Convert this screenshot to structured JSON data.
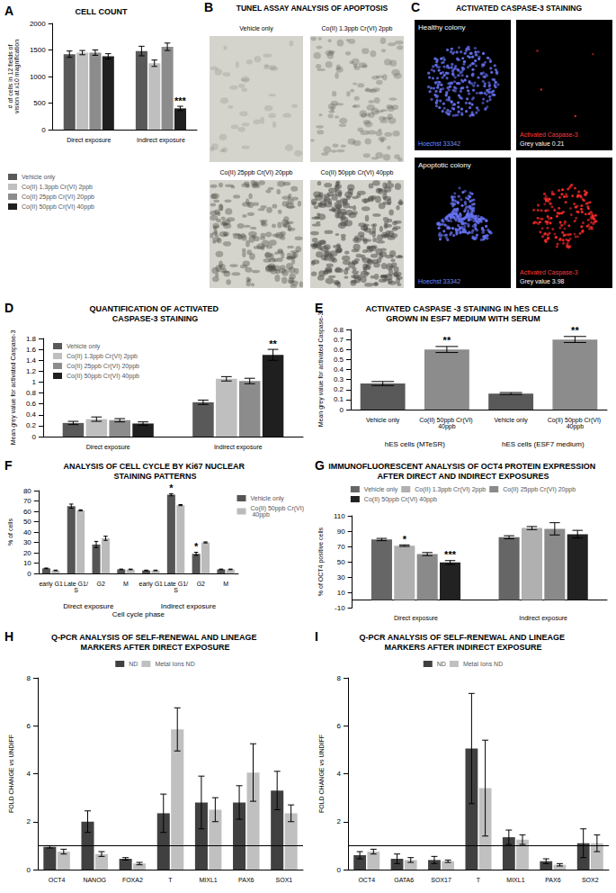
{
  "chart_data": [
    {
      "label": "A",
      "type": "bar",
      "title": "CELL COUNT",
      "categories": [
        "Direct exposure",
        "Indirect exposure"
      ],
      "y_label": "# of cells in 12 fields of\nvision at x10 magnification",
      "ylim": [
        0,
        2000
      ],
      "yticks": [
        0,
        500,
        1000,
        1500,
        2000
      ],
      "grid": false,
      "legend": "bottom-left",
      "series": [
        {
          "name": "Vehicle only",
          "color": "#595959",
          "values": [
            1420,
            1480
          ],
          "errors": [
            60,
            90
          ]
        },
        {
          "name": "Co(II) 1.3ppb Cr(VI) 2ppb",
          "color": "#bfbfbf",
          "values": [
            1450,
            1250
          ],
          "errors": [
            40,
            60
          ]
        },
        {
          "name": "Co(II) 25ppb Cr(VI) 20ppb",
          "color": "#8c8c8c",
          "values": [
            1450,
            1560
          ],
          "errors": [
            50,
            70
          ]
        },
        {
          "name": "Co(II) 50ppb Cr(VI) 40ppb",
          "color": "#1f1f1f",
          "values": [
            1380,
            400
          ],
          "errors": [
            50,
            40
          ]
        }
      ],
      "annotations": [
        {
          "series": 3,
          "category": 1,
          "text": "***"
        }
      ]
    },
    {
      "label": "D",
      "type": "bar",
      "title": "QUANTIFICATION OF ACTIVATED CASPASE-3 STAINING",
      "categories": [
        "Direct exposure",
        "Indirect exposure"
      ],
      "y_label": "Mean grey value for activated Caspase-3",
      "ylim": [
        0,
        1.8
      ],
      "yticks": [
        0,
        0.2,
        0.4,
        0.6,
        0.8,
        1,
        1.2,
        1.4,
        1.6,
        1.8
      ],
      "grid": false,
      "legend": "top-left",
      "series": [
        {
          "name": "Vehicle only",
          "color": "#595959",
          "values": [
            0.25,
            0.63
          ],
          "errors": [
            0.03,
            0.04
          ]
        },
        {
          "name": "Co(II) 1.3ppb Cr(VI) 2ppb",
          "color": "#bfbfbf",
          "values": [
            0.32,
            1.06
          ],
          "errors": [
            0.04,
            0.04
          ]
        },
        {
          "name": "Co(II) 25ppb Cr(VI) 20ppb",
          "color": "#8c8c8c",
          "values": [
            0.3,
            1.02
          ],
          "errors": [
            0.03,
            0.05
          ]
        },
        {
          "name": "Co(II) 50ppb Cr(VI) 40ppb",
          "color": "#1f1f1f",
          "values": [
            0.24,
            1.5
          ],
          "errors": [
            0.03,
            0.1
          ]
        }
      ],
      "annotations": [
        {
          "series": 3,
          "category": 1,
          "text": "**"
        }
      ]
    },
    {
      "label": "E",
      "type": "bar",
      "title": "ACTIVATED CASPASE -3 STAINING IN hES CELLS GROWN IN ESF7 MEDIUM WITH SERUM",
      "categories": [
        "Vehicle only",
        "Co(II) 50ppb Cr(VI) 40ppb",
        "Vehicle only",
        "Co(II) 50ppb Cr(VI) 40ppb"
      ],
      "groups": [
        "hES cells (MTeSR)",
        "hES cells (ESF7 medium)"
      ],
      "y_label": "Mean grey value for activated Caspase-3",
      "ylim": [
        0,
        0.8
      ],
      "yticks": [
        0,
        0.1,
        0.2,
        0.3,
        0.4,
        0.5,
        0.6,
        0.7,
        0.8
      ],
      "grid": false,
      "values": [
        0.26,
        0.6,
        0.16,
        0.7
      ],
      "errors": [
        0.02,
        0.03,
        0.01,
        0.03
      ],
      "colors": [
        "#595959",
        "#8c8c8c",
        "#595959",
        "#8c8c8c"
      ],
      "annotations": [
        {
          "series": 0,
          "category": 1,
          "text": "**"
        },
        {
          "series": 0,
          "category": 3,
          "text": "**"
        }
      ]
    },
    {
      "label": "F",
      "type": "bar",
      "title": "ANALYSIS OF CELL CYCLE BY Ki67 NUCLEAR STAINING PATTERNS",
      "categories": [
        "early G1",
        "Late G1/S",
        "G2",
        "M",
        "early G1",
        "Late G1/S",
        "G2",
        "M"
      ],
      "groups": [
        "Direct exposure",
        "Indirect exposure"
      ],
      "x_label": "Cell cycle phase",
      "y_label": "% of cells",
      "ylim": [
        0,
        80
      ],
      "yticks": [
        0,
        10,
        20,
        30,
        40,
        50,
        60,
        70,
        80
      ],
      "grid": false,
      "legend": "top-right",
      "series": [
        {
          "name": "Vehicle only",
          "color": "#555555",
          "values": [
            5,
            65,
            28,
            4,
            3,
            76,
            19,
            4
          ],
          "errors": [
            0.3,
            2,
            3,
            0.3,
            0.3,
            1,
            1.5,
            0.3
          ]
        },
        {
          "name": "Co(II) 50ppb Cr(VI) 40ppb",
          "color": "#bbbbbb",
          "values": [
            3,
            61,
            34,
            4,
            3,
            66,
            30,
            4
          ],
          "errors": [
            0.3,
            0.5,
            2,
            0.3,
            0.3,
            0.5,
            0.5,
            0.3
          ]
        }
      ],
      "annotations": [
        {
          "series": 0,
          "category": 5,
          "text": "*"
        },
        {
          "series": 0,
          "category": 6,
          "text": "*"
        }
      ]
    },
    {
      "label": "G",
      "type": "bar",
      "title": "IMMUNOFLUORESCENT ANALYSIS OF OCT4 PROTEIN EXPRESSION AFTER DIRECT AND INDIRECT EXPOSURES",
      "categories": [
        "Direct exposure",
        "Indirect exposure"
      ],
      "y_label": "% of OCT4 positive cells",
      "ylim": [
        -10,
        110
      ],
      "yticks": [
        -10,
        10,
        30,
        50,
        70,
        90,
        110
      ],
      "grid": false,
      "legend": "top",
      "series": [
        {
          "name": "Vehicle only",
          "color": "#666666",
          "values": [
            79,
            82
          ],
          "errors": [
            1.5,
            2
          ]
        },
        {
          "name": "Co(II) 1.3ppb Cr(VI) 2ppb",
          "color": "#b0b0b0",
          "values": [
            71,
            94
          ],
          "errors": [
            1,
            2
          ]
        },
        {
          "name": "Co(II) 25ppb Cr(VI) 20ppb",
          "color": "#8a8a8a",
          "values": [
            60,
            93
          ],
          "errors": [
            2,
            8
          ]
        },
        {
          "name": "Co(II) 50ppb Cr(VI) 40ppb",
          "color": "#222222",
          "values": [
            49,
            86
          ],
          "errors": [
            2.5,
            5
          ]
        }
      ],
      "annotations": [
        {
          "series": 1,
          "category": 0,
          "text": "*"
        },
        {
          "series": 3,
          "category": 0,
          "text": "***"
        }
      ]
    },
    {
      "label": "H",
      "type": "bar",
      "title": "Q-PCR ANALYSIS OF SELF-RENEWAL AND LINEAGE MARKERS AFTER DIRECT EXPOSURE",
      "categories": [
        "OCT4",
        "NANOG",
        "FOXA2",
        "T",
        "MIXL1",
        "PAX6",
        "SOX1"
      ],
      "y_label": "FOLD CHANGE vs UNDIFF",
      "ylim": [
        0,
        8
      ],
      "yticks": [
        0,
        2,
        4,
        6,
        8
      ],
      "grid": false,
      "legend": "top",
      "reference_line": 1,
      "series": [
        {
          "name": "ND",
          "color": "#404040",
          "values": [
            0.95,
            2.0,
            0.45,
            2.35,
            2.8,
            2.8,
            3.3
          ],
          "errors": [
            0.05,
            0.45,
            0.05,
            0.8,
            1.1,
            0.7,
            0.8
          ]
        },
        {
          "name": "Metal Ions ND",
          "color": "#c0c0c0",
          "values": [
            0.75,
            0.65,
            0.25,
            5.85,
            2.5,
            4.05,
            2.35
          ],
          "errors": [
            0.1,
            0.1,
            0.05,
            0.9,
            0.5,
            1.2,
            0.35
          ]
        }
      ]
    },
    {
      "label": "I",
      "type": "bar",
      "title": "Q-PCR ANALYSIS OF SELF-RENEWAL AND LINEAGE MARKERS AFTER INDIRECT EXPOSURE",
      "categories": [
        "OCT4",
        "GATA6",
        "SOX17",
        "T",
        "MIXL1",
        "PAX6",
        "SOX2"
      ],
      "y_label": "FOLD CHANGE vs UNDIFF",
      "ylim": [
        0,
        8
      ],
      "yticks": [
        0,
        2,
        4,
        6,
        8
      ],
      "grid": false,
      "legend": "top",
      "reference_line": 1,
      "series": [
        {
          "name": "ND",
          "color": "#404040",
          "values": [
            0.6,
            0.45,
            0.4,
            5.05,
            1.35,
            0.35,
            1.1
          ],
          "errors": [
            0.15,
            0.2,
            0.15,
            2.3,
            0.3,
            0.1,
            0.6
          ]
        },
        {
          "name": "Metal Ions ND",
          "color": "#c0c0c0",
          "values": [
            0.75,
            0.4,
            0.35,
            3.4,
            1.25,
            0.2,
            1.1
          ],
          "errors": [
            0.1,
            0.1,
            0.05,
            2.0,
            0.2,
            0.05,
            0.35
          ]
        }
      ]
    }
  ],
  "image_panels": [
    {
      "label": "B",
      "title": "TUNEL ASSAY ANALYSIS OF APOPTOSIS",
      "images": [
        "Vehicle only",
        "Co(II) 1.3ppb Cr(VI) 2ppb",
        "Co(II) 25ppb Cr(VI) 20ppb",
        "Co(II) 50ppb Cr(VI) 40ppb"
      ]
    },
    {
      "label": "C",
      "title": "ACTIVATED CASPASE-3 STAINING",
      "rows": [
        {
          "colony": "Healthy colony",
          "stain_1": "Hoechst 33342",
          "stain_2": "Activated Caspase-3",
          "grey_value": "Grey value 0.21"
        },
        {
          "colony": "Apoptotic colony",
          "stain_1": "Hoechst 33342",
          "stain_2": "Activated Caspase-3",
          "grey_value": "Grey value 3.98"
        }
      ]
    }
  ]
}
